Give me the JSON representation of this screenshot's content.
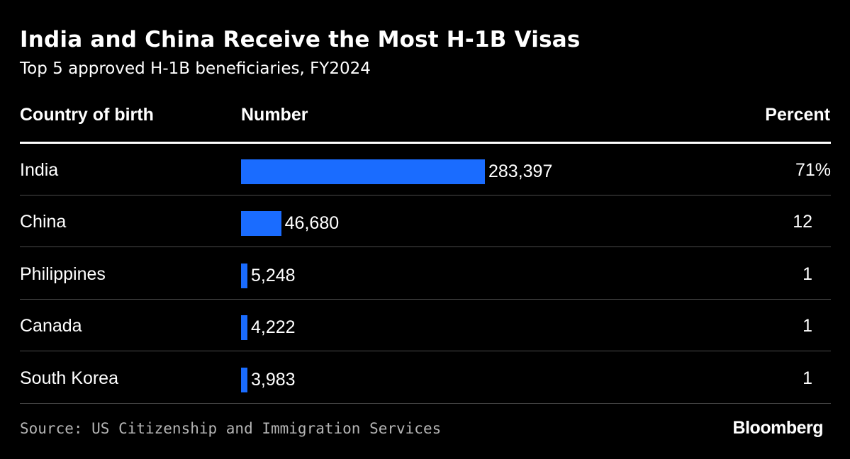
{
  "title": "India and China Receive the Most H-1B Visas",
  "subtitle": "Top 5 approved H-1B beneficiaries, FY2024",
  "columns": {
    "country": "Country of birth",
    "number": "Number",
    "percent": "Percent"
  },
  "chart_data": {
    "type": "table",
    "title": "India and China Receive the Most H-1B Visas",
    "subtitle": "Top 5 approved H-1B beneficiaries, FY2024",
    "columns": [
      "Country of birth",
      "Number",
      "Percent"
    ],
    "categories": [
      "India",
      "China",
      "Philippines",
      "Canada",
      "South Korea"
    ],
    "values": [
      283397,
      46680,
      5248,
      4222,
      3983
    ],
    "value_labels": [
      "283,397",
      "46,680",
      "5,248",
      "4,222",
      "3,983"
    ],
    "percent_labels": [
      "71%",
      "12",
      "1",
      "1",
      "1"
    ],
    "bar_color": "#1a6cff"
  },
  "footer": {
    "source": "Source: US Citizenship and Immigration Services",
    "brand": "Bloomberg"
  }
}
